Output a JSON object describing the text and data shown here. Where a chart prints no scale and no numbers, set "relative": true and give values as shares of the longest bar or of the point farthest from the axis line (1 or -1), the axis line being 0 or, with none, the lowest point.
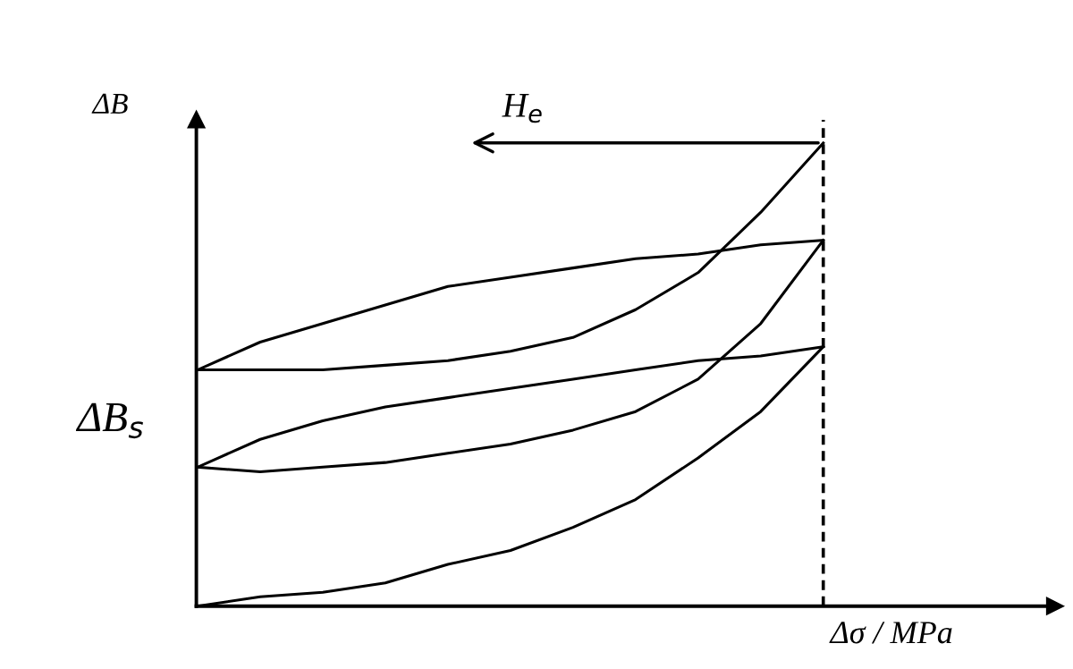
{
  "chart_data": {
    "type": "line",
    "relative": true,
    "xlabel": "Δσ / MPa",
    "ylabel": "ΔB",
    "categories": [
      null,
      null,
      null,
      null,
      null,
      null,
      null,
      null,
      null,
      null,
      null
    ],
    "series": [
      {
        "color": "#000000",
        "values": [
          0,
          0.02,
          0.03,
          0.05,
          0.09,
          0.12,
          0.17,
          0.23,
          0.32,
          0.42,
          0.56
        ]
      },
      {
        "color": "#000000",
        "values": [
          0.3,
          0.36,
          0.4,
          0.43,
          0.45,
          0.47,
          0.49,
          0.51,
          0.53,
          0.54,
          0.56
        ]
      },
      {
        "color": "#000000",
        "values": [
          0.3,
          0.29,
          0.3,
          0.31,
          0.33,
          0.35,
          0.38,
          0.42,
          0.49,
          0.61,
          0.79
        ]
      },
      {
        "color": "#000000",
        "values": [
          0.51,
          0.57,
          0.61,
          0.65,
          0.69,
          0.71,
          0.73,
          0.75,
          0.76,
          0.78,
          0.79
        ]
      },
      {
        "color": "#000000",
        "values": [
          0.51,
          0.51,
          0.51,
          0.52,
          0.53,
          0.55,
          0.58,
          0.64,
          0.72,
          0.85,
          1.0
        ]
      }
    ],
    "annotations": [
      "ΔB$_{s}$",
      "H$_{e}$"
    ]
  }
}
